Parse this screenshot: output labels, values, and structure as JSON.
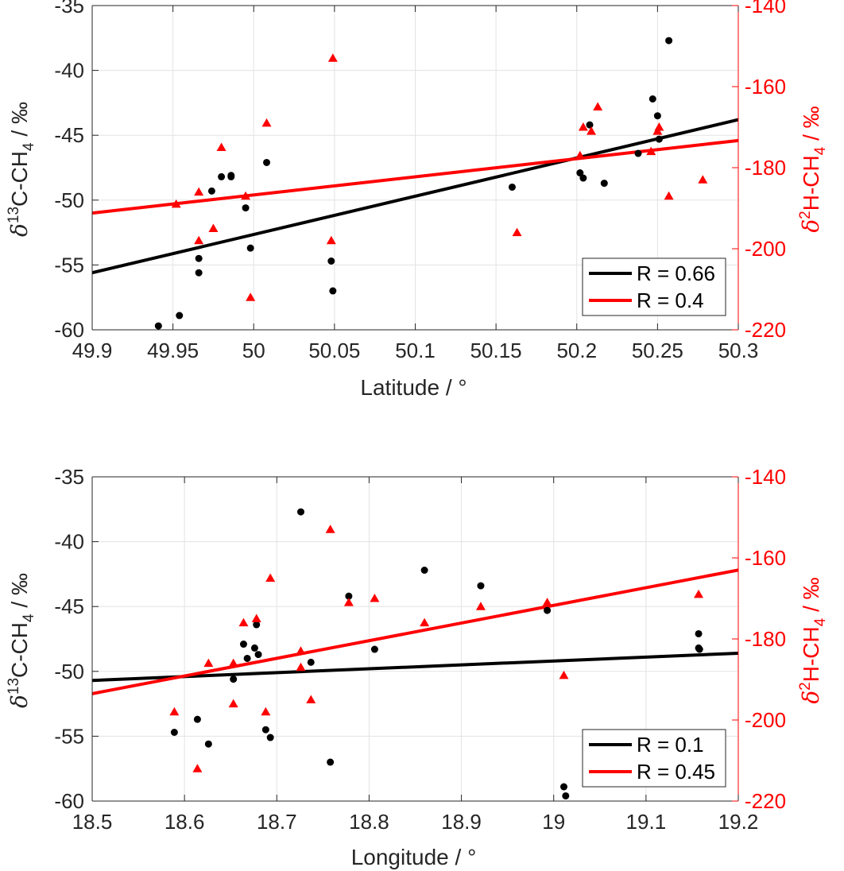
{
  "chart_data": [
    {
      "type": "scatter",
      "xlabel": "Latitude / °",
      "xlim": [
        49.9,
        50.3
      ],
      "xticks": [
        "49.9",
        "49.95",
        "50",
        "50.05",
        "50.1",
        "50.15",
        "50.2",
        "50.25",
        "50.3"
      ],
      "ylabel_left": {
        "pre": "δ",
        "sup": "13",
        "mid": "C-CH",
        "sub": "4",
        "post": " / ‰"
      },
      "ylabel_right": {
        "pre": "δ",
        "sup": "2",
        "mid": "H-CH",
        "sub": "4",
        "post": " / ‰"
      },
      "ylim_left": [
        -60,
        -35
      ],
      "ylim_right": [
        -220,
        -140
      ],
      "yticks_left": [
        "-60",
        "-55",
        "-50",
        "-45",
        "-40",
        "-35"
      ],
      "yticks_right": [
        "-220",
        "-200",
        "-180",
        "-160",
        "-140"
      ],
      "grid": true,
      "legend_position": "bottom-right",
      "legend": [
        "R = 0.66",
        "R = 0.4"
      ],
      "colors": {
        "c13": "#000000",
        "h2": "#ff0000"
      },
      "series": [
        {
          "axis": "left",
          "marker": "circle",
          "points": [
            [
              49.941,
              -59.7
            ],
            [
              49.954,
              -58.9
            ],
            [
              49.966,
              -54.5
            ],
            [
              49.966,
              -55.6
            ],
            [
              49.974,
              -49.3
            ],
            [
              49.98,
              -48.2
            ],
            [
              49.986,
              -48.2
            ],
            [
              49.986,
              -48.1
            ],
            [
              49.995,
              -50.6
            ],
            [
              49.998,
              -53.7
            ],
            [
              50.008,
              -47.1
            ],
            [
              50.048,
              -54.7
            ],
            [
              50.049,
              -57.0
            ],
            [
              50.16,
              -49.0
            ],
            [
              50.202,
              -47.9
            ],
            [
              50.204,
              -48.3
            ],
            [
              50.208,
              -44.2
            ],
            [
              50.217,
              -48.7
            ],
            [
              50.238,
              -46.4
            ],
            [
              50.247,
              -42.2
            ],
            [
              50.25,
              -43.5
            ],
            [
              50.251,
              -45.3
            ],
            [
              50.257,
              -37.7
            ]
          ]
        },
        {
          "axis": "right",
          "marker": "triangle",
          "points": [
            [
              49.952,
              -189
            ],
            [
              49.966,
              -186
            ],
            [
              49.966,
              -198
            ],
            [
              49.975,
              -195
            ],
            [
              49.98,
              -175
            ],
            [
              49.995,
              -187
            ],
            [
              49.998,
              -212
            ],
            [
              50.008,
              -169
            ],
            [
              50.048,
              -198
            ],
            [
              50.049,
              -153
            ],
            [
              50.163,
              -196
            ],
            [
              50.202,
              -177
            ],
            [
              50.204,
              -170
            ],
            [
              50.209,
              -171
            ],
            [
              50.213,
              -165
            ],
            [
              50.246,
              -176
            ],
            [
              50.25,
              -171
            ],
            [
              50.251,
              -170
            ],
            [
              50.257,
              -187
            ],
            [
              50.278,
              -183
            ]
          ]
        }
      ],
      "fit_lines": [
        {
          "axis": "left",
          "color": "#000000",
          "x": [
            49.9,
            50.3
          ],
          "y": [
            -55.6,
            -43.8
          ]
        },
        {
          "axis": "right",
          "color": "#ff0000",
          "x": [
            49.9,
            50.3
          ],
          "y": [
            -191.2,
            -173.3
          ]
        }
      ]
    },
    {
      "type": "scatter",
      "xlabel": "Longitude / °",
      "xlim": [
        18.5,
        19.2
      ],
      "xticks": [
        "18.5",
        "18.6",
        "18.7",
        "18.8",
        "18.9",
        "19",
        "19.1",
        "19.2"
      ],
      "ylabel_left": {
        "pre": "δ",
        "sup": "13",
        "mid": "C-CH",
        "sub": "4",
        "post": " / ‰"
      },
      "ylabel_right": {
        "pre": "δ",
        "sup": "2",
        "mid": "H-CH",
        "sub": "4",
        "post": " / ‰"
      },
      "ylim_left": [
        -60,
        -35
      ],
      "ylim_right": [
        -220,
        -140
      ],
      "yticks_left": [
        "-60",
        "-55",
        "-50",
        "-45",
        "-40",
        "-35"
      ],
      "yticks_right": [
        "-220",
        "-200",
        "-180",
        "-160",
        "-140"
      ],
      "grid": true,
      "legend_position": "bottom-right",
      "legend": [
        "R = 0.1",
        "R = 0.45"
      ],
      "colors": {
        "c13": "#000000",
        "h2": "#ff0000"
      },
      "series": [
        {
          "axis": "left",
          "marker": "circle",
          "points": [
            [
              18.589,
              -54.7
            ],
            [
              18.614,
              -53.7
            ],
            [
              18.626,
              -55.6
            ],
            [
              18.653,
              -50.6
            ],
            [
              18.664,
              -47.9
            ],
            [
              18.668,
              -49.0
            ],
            [
              18.676,
              -48.2
            ],
            [
              18.678,
              -46.4
            ],
            [
              18.68,
              -48.7
            ],
            [
              18.688,
              -54.5
            ],
            [
              18.693,
              -55.1
            ],
            [
              18.726,
              -37.7
            ],
            [
              18.737,
              -49.3
            ],
            [
              18.758,
              -57.0
            ],
            [
              18.778,
              -44.2
            ],
            [
              18.806,
              -48.3
            ],
            [
              18.86,
              -42.2
            ],
            [
              18.921,
              -43.4
            ],
            [
              18.993,
              -45.3
            ],
            [
              19.011,
              -58.9
            ],
            [
              19.013,
              -59.6
            ],
            [
              19.157,
              -47.1
            ],
            [
              19.157,
              -48.2
            ],
            [
              19.158,
              -48.3
            ]
          ]
        },
        {
          "axis": "right",
          "marker": "triangle",
          "points": [
            [
              18.589,
              -198
            ],
            [
              18.614,
              -212
            ],
            [
              18.626,
              -186
            ],
            [
              18.653,
              -186
            ],
            [
              18.653,
              -196
            ],
            [
              18.664,
              -176
            ],
            [
              18.678,
              -175
            ],
            [
              18.688,
              -198
            ],
            [
              18.693,
              -165
            ],
            [
              18.726,
              -187
            ],
            [
              18.726,
              -183
            ],
            [
              18.737,
              -195
            ],
            [
              18.758,
              -153
            ],
            [
              18.778,
              -171
            ],
            [
              18.806,
              -170
            ],
            [
              18.86,
              -176
            ],
            [
              18.921,
              -172
            ],
            [
              18.993,
              -171
            ],
            [
              19.011,
              -189
            ],
            [
              19.157,
              -169
            ]
          ]
        }
      ],
      "fit_lines": [
        {
          "axis": "left",
          "color": "#000000",
          "x": [
            18.5,
            19.2
          ],
          "y": [
            -50.7,
            -48.6
          ]
        },
        {
          "axis": "right",
          "color": "#ff0000",
          "x": [
            18.5,
            19.2
          ],
          "y": [
            -193.5,
            -163.0
          ]
        }
      ]
    }
  ]
}
